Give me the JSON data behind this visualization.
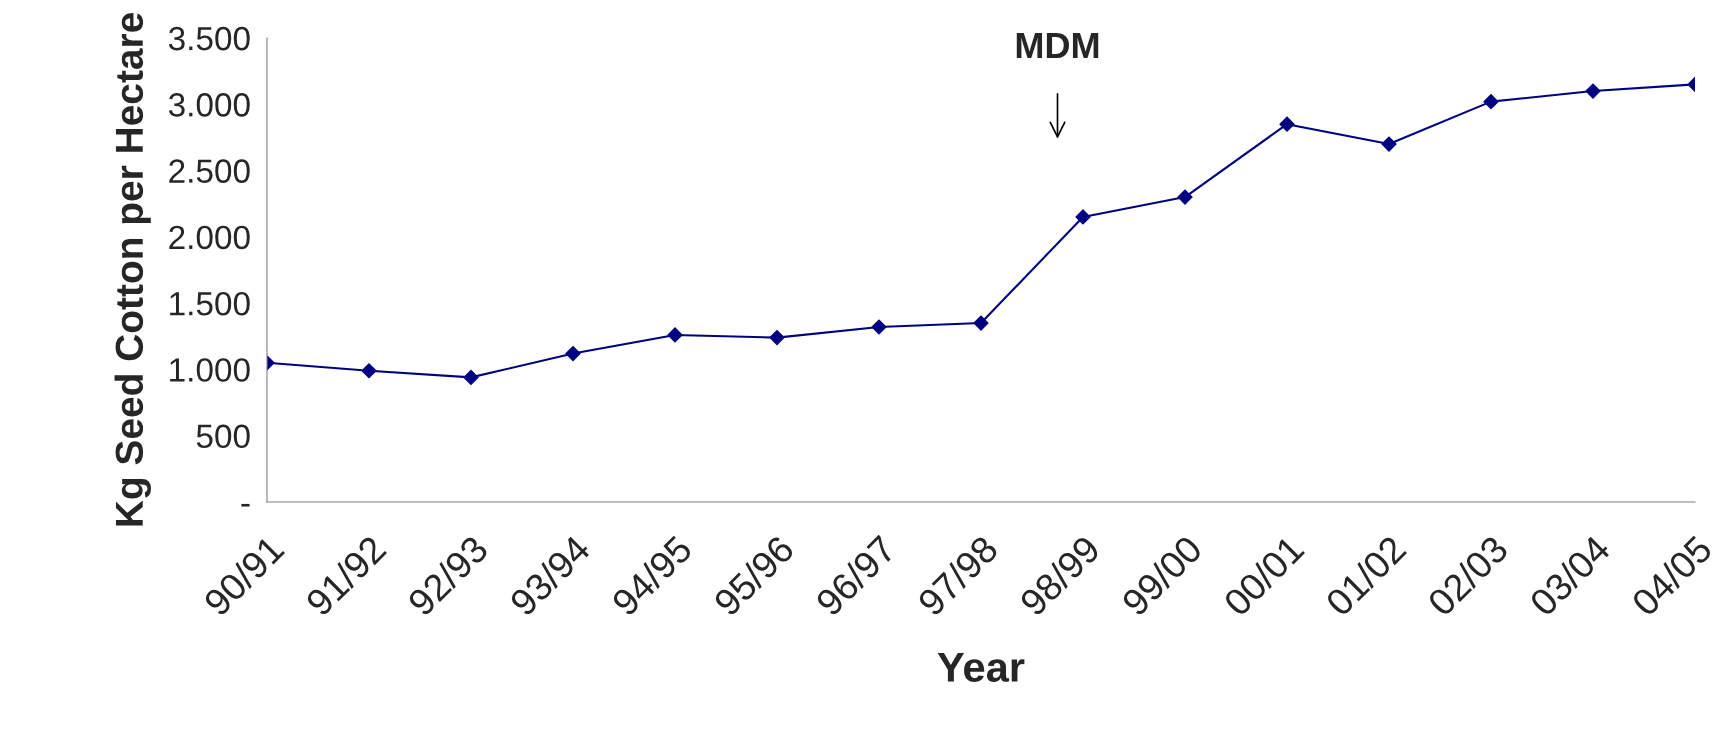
{
  "chart_data": {
    "type": "line",
    "xlabel": "Year",
    "ylabel": "Kg Seed Cotton per Hectare",
    "categories": [
      "90/91",
      "91/92",
      "92/93",
      "93/94",
      "94/95",
      "95/96",
      "96/97",
      "97/98",
      "98/99",
      "99/00",
      "00/01",
      "01/02",
      "02/03",
      "03/04",
      "04/05"
    ],
    "series": [
      {
        "color": "#000080",
        "values": [
          1050,
          990,
          940,
          1120,
          1260,
          1240,
          1320,
          1350,
          2150,
          2300,
          2850,
          2700,
          3020,
          3100,
          3150
        ]
      }
    ],
    "ylim": [
      0,
      3500
    ],
    "yticks": [
      {
        "value": 0,
        "label": "-"
      },
      {
        "value": 500,
        "label": "500"
      },
      {
        "value": 1000,
        "label": "1.000"
      },
      {
        "value": 1500,
        "label": "1.500"
      },
      {
        "value": 2000,
        "label": "2.000"
      },
      {
        "value": 2500,
        "label": "2.500"
      },
      {
        "value": 3000,
        "label": "3.000"
      },
      {
        "value": 3500,
        "label": "3.500"
      }
    ],
    "annotations": [
      "MDM"
    ],
    "marker": "diamond",
    "line_style": "solid",
    "grid": false,
    "legend": false
  }
}
